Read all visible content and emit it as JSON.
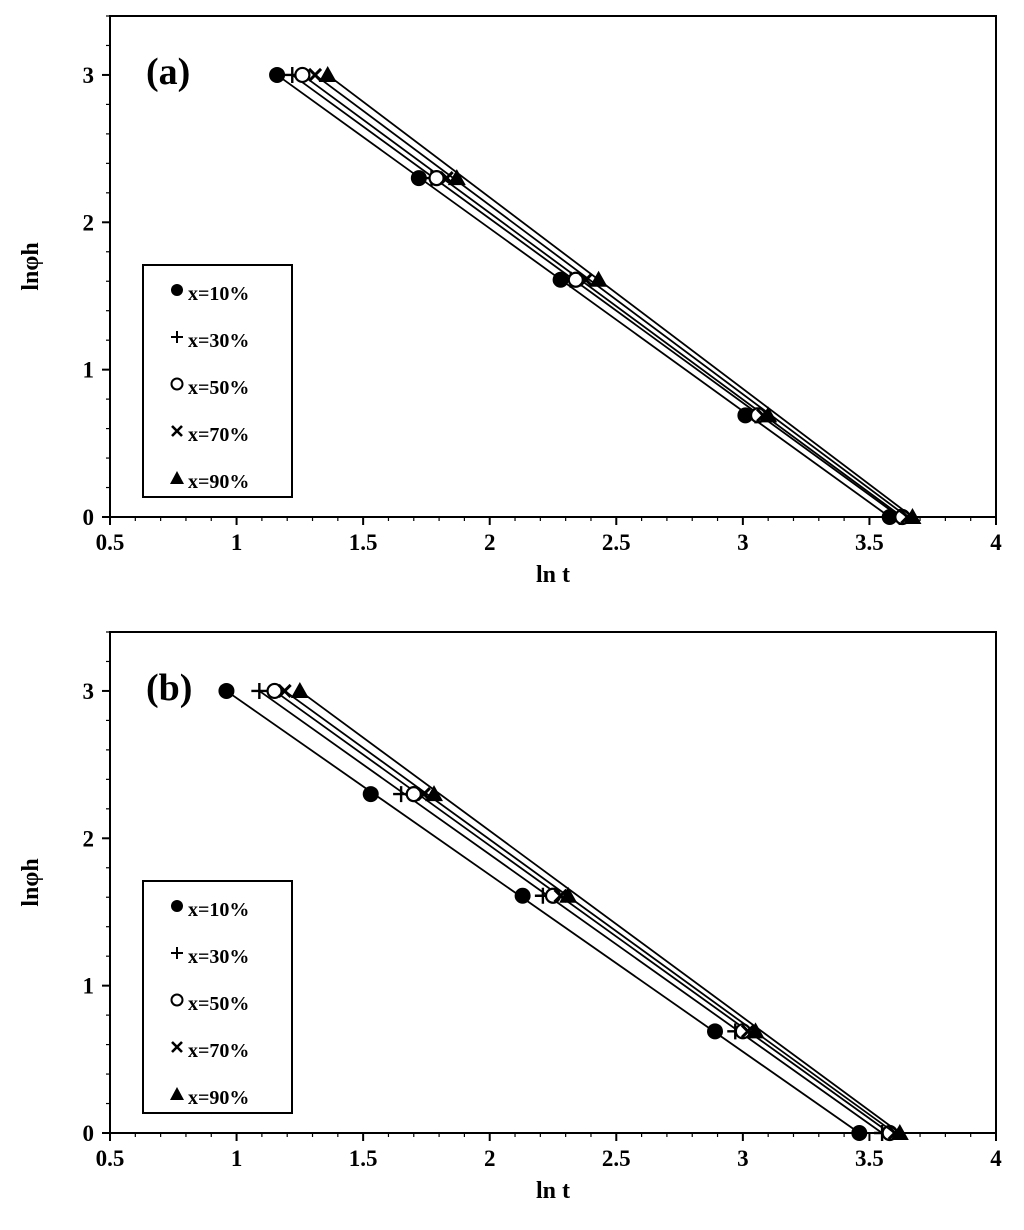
{
  "chart_data": [
    {
      "type": "scatter",
      "panel_label": "(a)",
      "xlabel": "ln t",
      "ylabel": "lnφh",
      "xlim": [
        0.5,
        4
      ],
      "ylim": [
        0,
        3.4
      ],
      "xticks": [
        0.5,
        1,
        1.5,
        2,
        2.5,
        3,
        3.5,
        4
      ],
      "xtick_labels": [
        "0.5",
        "1",
        "1.5",
        "2",
        "2.5",
        "3",
        "3.5",
        "4"
      ],
      "yticks": [
        0,
        1,
        2,
        3
      ],
      "ytick_labels": [
        "0",
        "1",
        "2",
        "3"
      ],
      "grid": false,
      "legend": "left-middle",
      "fit_lines": true,
      "series": [
        {
          "name": "x=10%",
          "marker": "filled-circle",
          "points": [
            [
              1.16,
              3.0
            ],
            [
              1.72,
              2.3
            ],
            [
              2.28,
              1.61
            ],
            [
              3.01,
              0.69
            ],
            [
              3.58,
              0.0
            ]
          ]
        },
        {
          "name": "x=30%",
          "marker": "plus",
          "points": [
            [
              1.22,
              3.0
            ],
            [
              1.77,
              2.3
            ],
            [
              2.32,
              1.61
            ],
            [
              3.05,
              0.69
            ],
            [
              3.62,
              0.0
            ]
          ]
        },
        {
          "name": "x=50%",
          "marker": "open-circle",
          "points": [
            [
              1.26,
              3.0
            ],
            [
              1.79,
              2.3
            ],
            [
              2.34,
              1.61
            ],
            [
              3.06,
              0.69
            ],
            [
              3.63,
              0.0
            ]
          ]
        },
        {
          "name": "x=70%",
          "marker": "x-cross",
          "points": [
            [
              1.31,
              3.0
            ],
            [
              1.83,
              2.3
            ],
            [
              2.38,
              1.61
            ],
            [
              3.08,
              0.69
            ],
            [
              3.65,
              0.0
            ]
          ]
        },
        {
          "name": "x=90%",
          "marker": "filled-triangle",
          "points": [
            [
              1.36,
              3.0
            ],
            [
              1.87,
              2.3
            ],
            [
              2.43,
              1.61
            ],
            [
              3.1,
              0.69
            ],
            [
              3.67,
              0.0
            ]
          ]
        }
      ]
    },
    {
      "type": "scatter",
      "panel_label": "(b)",
      "xlabel": "ln t",
      "ylabel": "lnφh",
      "xlim": [
        0.5,
        4
      ],
      "ylim": [
        0,
        3.4
      ],
      "xticks": [
        0.5,
        1,
        1.5,
        2,
        2.5,
        3,
        3.5,
        4
      ],
      "xtick_labels": [
        "0.5",
        "1",
        "1.5",
        "2",
        "2.5",
        "3",
        "3.5",
        "4"
      ],
      "yticks": [
        0,
        1,
        2,
        3
      ],
      "ytick_labels": [
        "0",
        "1",
        "2",
        "3"
      ],
      "grid": false,
      "legend": "left-middle",
      "fit_lines": true,
      "series": [
        {
          "name": "x=10%",
          "marker": "filled-circle",
          "points": [
            [
              0.96,
              3.0
            ],
            [
              1.53,
              2.3
            ],
            [
              2.13,
              1.61
            ],
            [
              2.89,
              0.69
            ],
            [
              3.46,
              0.0
            ]
          ]
        },
        {
          "name": "x=30%",
          "marker": "plus",
          "points": [
            [
              1.09,
              3.0
            ],
            [
              1.65,
              2.3
            ],
            [
              2.21,
              1.61
            ],
            [
              2.97,
              0.69
            ],
            [
              3.55,
              0.0
            ]
          ]
        },
        {
          "name": "x=50%",
          "marker": "open-circle",
          "points": [
            [
              1.15,
              3.0
            ],
            [
              1.7,
              2.3
            ],
            [
              2.25,
              1.61
            ],
            [
              3.0,
              0.69
            ],
            [
              3.58,
              0.0
            ]
          ]
        },
        {
          "name": "x=70%",
          "marker": "x-cross",
          "points": [
            [
              1.19,
              3.0
            ],
            [
              1.74,
              2.3
            ],
            [
              2.28,
              1.61
            ],
            [
              3.02,
              0.69
            ],
            [
              3.6,
              0.0
            ]
          ]
        },
        {
          "name": "x=90%",
          "marker": "filled-triangle",
          "points": [
            [
              1.25,
              3.0
            ],
            [
              1.78,
              2.3
            ],
            [
              2.31,
              1.61
            ],
            [
              3.05,
              0.69
            ],
            [
              3.62,
              0.0
            ]
          ]
        }
      ]
    }
  ]
}
